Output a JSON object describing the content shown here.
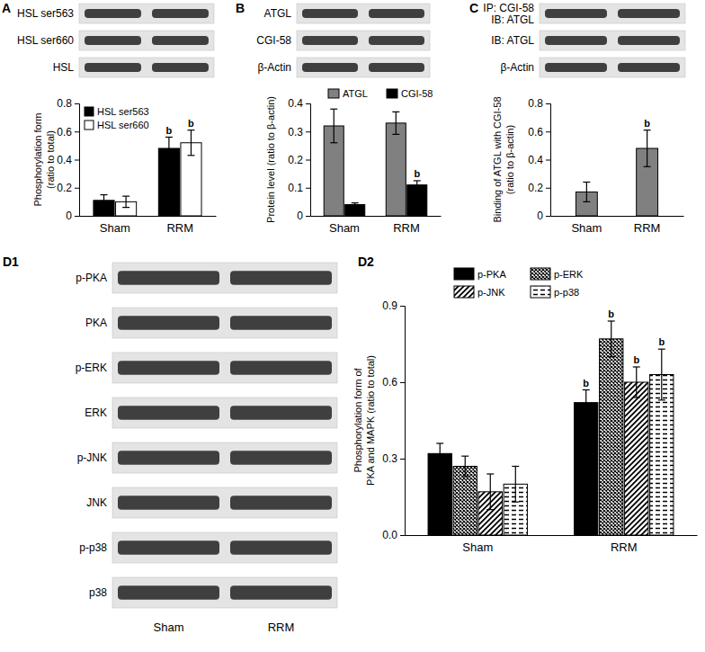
{
  "chart_data": [
    {
      "type": "bar",
      "title": "A",
      "categories": [
        "Sham",
        "RRM"
      ],
      "ylabel": [
        "Phosphorylation form",
        "(ratio to total)"
      ],
      "ylim": [
        0,
        0.8
      ],
      "yticks": [
        0,
        0.2,
        0.4,
        0.6,
        0.8
      ],
      "legend": "upper left",
      "series": [
        {
          "name": "HSL ser563",
          "color": "#000000",
          "values": [
            0.11,
            0.48
          ],
          "errors": [
            0.04,
            0.08
          ],
          "annotations": [
            null,
            "b"
          ]
        },
        {
          "name": "HSL ser660",
          "color": "#ffffff",
          "values": [
            0.1,
            0.52
          ],
          "errors": [
            0.04,
            0.09
          ],
          "annotations": [
            null,
            "b"
          ]
        }
      ]
    },
    {
      "type": "bar",
      "title": "B",
      "categories": [
        "Sham",
        "RRM"
      ],
      "ylabel": [
        "Protein level (ratio to β-actin)"
      ],
      "ylim": [
        0,
        0.4
      ],
      "yticks": [
        0,
        0.1,
        0.2,
        0.3,
        0.4
      ],
      "legend": "top",
      "series": [
        {
          "name": "ATGL",
          "color": "#808080",
          "values": [
            0.32,
            0.33
          ],
          "errors": [
            0.06,
            0.04
          ],
          "annotations": [
            null,
            null
          ]
        },
        {
          "name": "CGI-58",
          "color": "#000000",
          "values": [
            0.04,
            0.11
          ],
          "errors": [
            0.006,
            0.015
          ],
          "annotations": [
            null,
            "b"
          ]
        }
      ]
    },
    {
      "type": "bar",
      "title": "C",
      "categories": [
        "Sham",
        "RRM"
      ],
      "ylabel": [
        "Binding of ATGL with CGI-58",
        "(ratio to β-actin)"
      ],
      "ylim": [
        0,
        0.8
      ],
      "yticks": [
        0,
        0.2,
        0.4,
        0.6,
        0.8
      ],
      "series": [
        {
          "color": "#808080",
          "values": [
            0.17,
            0.48
          ],
          "errors": [
            0.07,
            0.13
          ],
          "annotations": [
            null,
            "b"
          ]
        }
      ]
    },
    {
      "type": "bar",
      "title": "D2",
      "categories": [
        "Sham",
        "RRM"
      ],
      "ylabel": [
        "Phosphorylation form of",
        "PKA and MAPK (ratio to total)"
      ],
      "ylim": [
        0,
        0.9
      ],
      "yticks": [
        {
          "value": 0,
          "label": "0.0"
        },
        0.3,
        0.6,
        0.9
      ],
      "legend": "top",
      "series": [
        {
          "name": "p-PKA",
          "color": "#000000",
          "values": [
            0.32,
            0.52
          ],
          "errors": [
            0.04,
            0.05
          ],
          "annotations": [
            null,
            "b"
          ]
        },
        {
          "name": "p-ERK",
          "color": "#000000",
          "values": [
            0.27,
            0.77
          ],
          "errors": [
            0.04,
            0.07
          ],
          "annotations": [
            null,
            "b"
          ]
        },
        {
          "name": "p-JNK",
          "color": "#000000",
          "values": [
            0.17,
            0.6
          ],
          "errors": [
            0.07,
            0.06
          ],
          "annotations": [
            null,
            "b"
          ]
        },
        {
          "name": "p-p38",
          "color": "#000000",
          "values": [
            0.2,
            0.63
          ],
          "errors": [
            0.07,
            0.1
          ],
          "annotations": [
            null,
            "b"
          ]
        }
      ]
    }
  ],
  "blots": [
    {
      "rows": [
        [
          "HSL ser563"
        ],
        [
          "HSL ser660"
        ],
        [
          "HSL"
        ]
      ]
    },
    {
      "rows": [
        [
          "ATGL"
        ],
        [
          "CGI-58"
        ],
        [
          "β-Actin"
        ]
      ]
    },
    {
      "rows": [
        [
          "IP: CGI-58",
          "IB: ATGL"
        ],
        [
          "IB: ATGL"
        ],
        [
          "β-Actin"
        ]
      ]
    },
    {
      "title": "D1",
      "rows": [
        [
          "p-PKA"
        ],
        [
          "PKA"
        ],
        [
          "p-ERK"
        ],
        [
          "ERK"
        ],
        [
          "p-JNK"
        ],
        [
          "JNK"
        ],
        [
          "p-p38"
        ],
        [
          "p38"
        ]
      ],
      "lanes": [
        "Sham",
        "RRM"
      ]
    }
  ]
}
